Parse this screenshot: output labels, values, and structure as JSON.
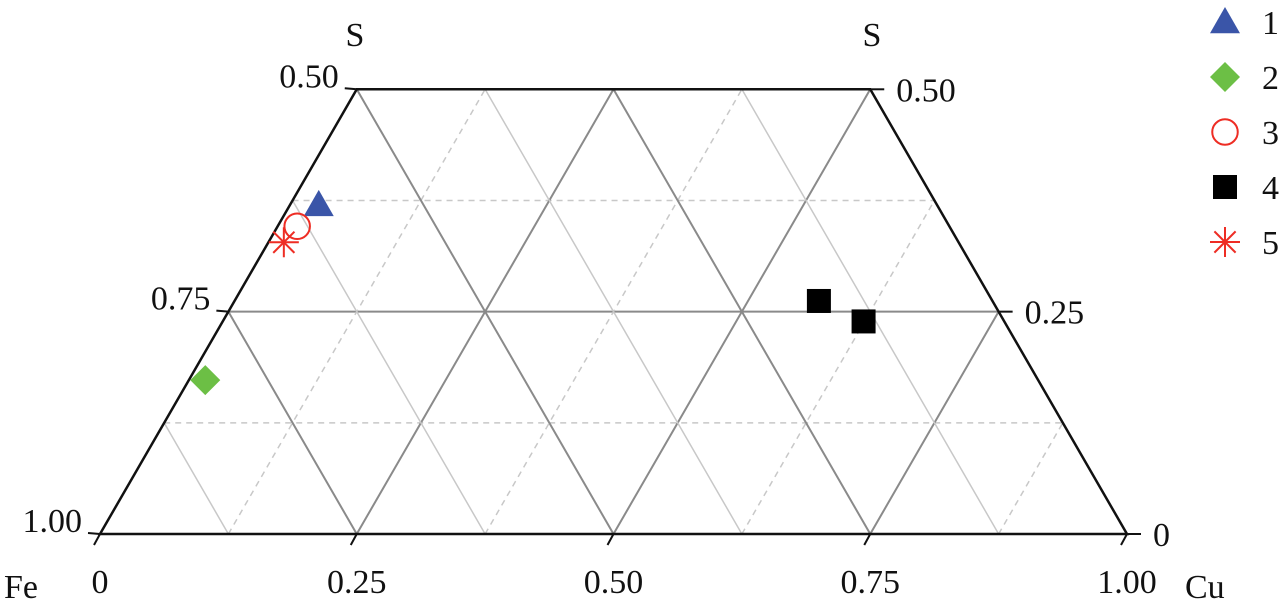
{
  "chart_data": {
    "type": "ternary-scatter",
    "components": {
      "top": "S",
      "left": "Fe",
      "right": "Cu"
    },
    "top_labels": [
      "S",
      "S"
    ],
    "s_range": [
      0,
      0.5
    ],
    "grid": true,
    "bottom_ticks": [
      "0",
      "0.25",
      "0.50",
      "0.75",
      "1.00"
    ],
    "left_ticks": [
      "1.00",
      "0.75",
      "0.50"
    ],
    "right_ticks": [
      "0",
      "0.25",
      "0.50"
    ],
    "legend_position": "right",
    "series": [
      {
        "name": "1",
        "marker": "triangle",
        "color": "#3a55a8",
        "points": [
          {
            "S": 0.37,
            "Cu": 0.028
          }
        ]
      },
      {
        "name": "2",
        "marker": "diamond",
        "color": "#6cbf45",
        "points": [
          {
            "S": 0.173,
            "Cu": 0.016
          }
        ]
      },
      {
        "name": "3",
        "marker": "open-circle",
        "color": "#ee2d24",
        "points": [
          {
            "S": 0.346,
            "Cu": 0.019
          }
        ]
      },
      {
        "name": "4",
        "marker": "square",
        "color": "#000000",
        "points": [
          {
            "S": 0.262,
            "Cu": 0.569
          },
          {
            "S": 0.239,
            "Cu": 0.624
          }
        ]
      },
      {
        "name": "5",
        "marker": "asterisk",
        "color": "#ee2d24",
        "points": [
          {
            "S": 0.328,
            "Cu": 0.015
          }
        ]
      }
    ]
  }
}
